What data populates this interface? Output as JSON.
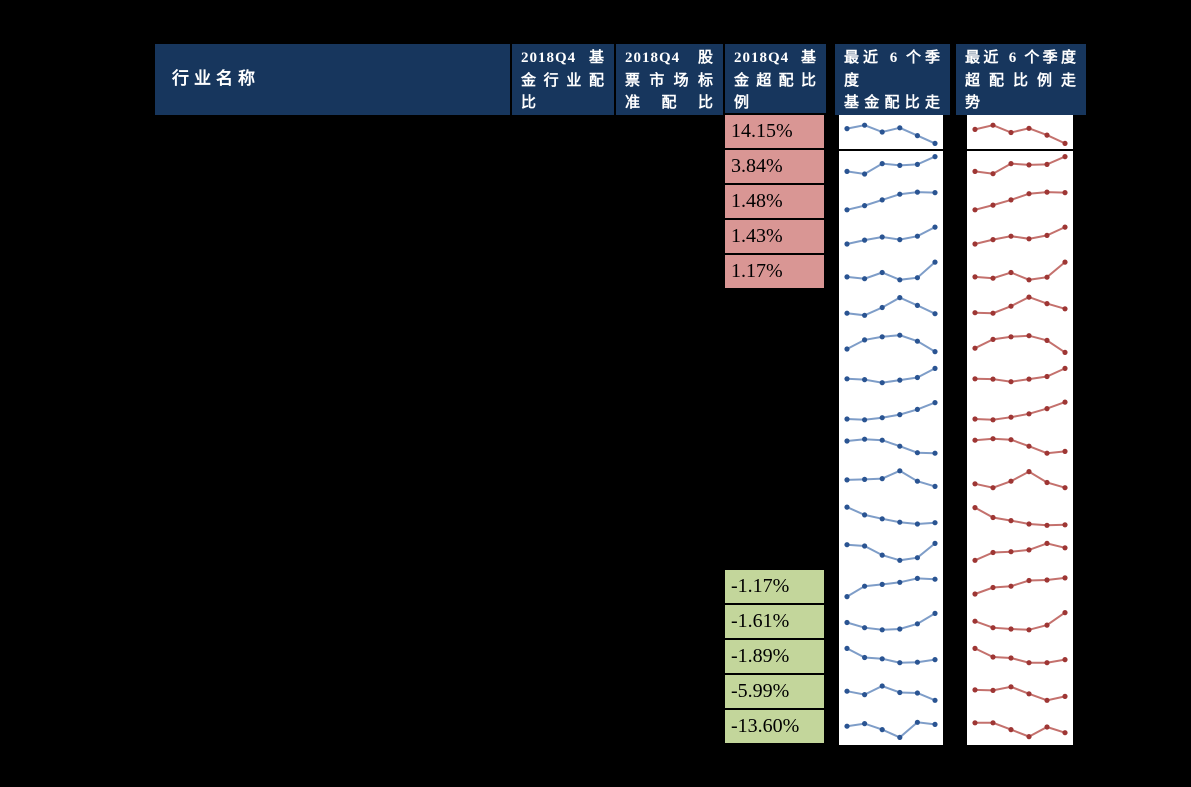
{
  "header": {
    "columns": [
      "行业名称",
      "2018Q4 基\n金行业配\n比",
      "2018Q4 股\n票市场标\n准配比",
      "2018Q4 基\n金超配比\n例",
      "最近 6 个季度\n基金配比走\n势",
      "最近 6 个季度\n超配比例走\n势"
    ]
  },
  "colors": {
    "page_bg": "#000000",
    "header_bg": "#17365D",
    "header_text": "#FFFFFF",
    "positive_cell_bg": "#D99694",
    "negative_cell_bg": "#C3D69B",
    "spark_bg": "#FFFFFF",
    "fund_line": "#7E9DC8",
    "fund_marker": "#2A5492",
    "overweight_line": "#C4716D",
    "overweight_marker": "#9E3634"
  },
  "chart_data": {
    "type": "table",
    "columns": [
      "行业名称",
      "2018Q4 基金行业配比",
      "2018Q4 股票市场标准配比",
      "2018Q4 基金超配比例",
      "最近6个季度基金配比走势",
      "最近6个季度超配比例走势"
    ],
    "sparkline_points_per_row": 6,
    "rows": [
      {
        "overweight_ratio": "14.15%",
        "fund_trend": [
          0.65,
          0.78,
          0.52,
          0.68,
          0.38,
          0.08
        ],
        "overweight_trend": [
          0.62,
          0.78,
          0.5,
          0.66,
          0.4,
          0.08
        ]
      },
      {
        "overweight_ratio": "3.84%",
        "fund_trend": [
          0.35,
          0.25,
          0.65,
          0.58,
          0.62,
          0.92
        ],
        "overweight_trend": [
          0.35,
          0.26,
          0.65,
          0.6,
          0.62,
          0.92
        ]
      },
      {
        "overweight_ratio": "1.48%",
        "fund_trend": [
          0.22,
          0.38,
          0.6,
          0.82,
          0.9,
          0.88
        ],
        "overweight_trend": [
          0.22,
          0.4,
          0.6,
          0.84,
          0.9,
          0.88
        ]
      },
      {
        "overweight_ratio": "1.43%",
        "fund_trend": [
          0.25,
          0.4,
          0.52,
          0.42,
          0.55,
          0.9
        ],
        "overweight_trend": [
          0.25,
          0.42,
          0.55,
          0.45,
          0.58,
          0.9
        ]
      },
      {
        "overweight_ratio": "1.17%",
        "fund_trend": [
          0.33,
          0.26,
          0.5,
          0.22,
          0.3,
          0.9
        ],
        "overweight_trend": [
          0.33,
          0.28,
          0.5,
          0.22,
          0.32,
          0.9
        ]
      },
      {
        "fund_trend": [
          0.28,
          0.2,
          0.5,
          0.88,
          0.58,
          0.26
        ],
        "overweight_trend": [
          0.3,
          0.28,
          0.55,
          0.9,
          0.65,
          0.45
        ]
      },
      {
        "fund_trend": [
          0.25,
          0.6,
          0.72,
          0.78,
          0.55,
          0.15
        ],
        "overweight_trend": [
          0.28,
          0.62,
          0.72,
          0.76,
          0.58,
          0.12
        ]
      },
      {
        "fund_trend": [
          0.45,
          0.42,
          0.3,
          0.4,
          0.5,
          0.85
        ],
        "overweight_trend": [
          0.45,
          0.44,
          0.34,
          0.44,
          0.54,
          0.85
        ]
      },
      {
        "fund_trend": [
          0.25,
          0.22,
          0.3,
          0.42,
          0.62,
          0.88
        ],
        "overweight_trend": [
          0.25,
          0.22,
          0.32,
          0.45,
          0.65,
          0.9
        ]
      },
      {
        "fund_trend": [
          0.75,
          0.82,
          0.78,
          0.55,
          0.3,
          0.28
        ],
        "overweight_trend": [
          0.78,
          0.84,
          0.8,
          0.55,
          0.28,
          0.35
        ]
      },
      {
        "fund_trend": [
          0.6,
          0.62,
          0.65,
          0.95,
          0.55,
          0.35
        ],
        "overweight_trend": [
          0.45,
          0.3,
          0.55,
          0.92,
          0.5,
          0.3
        ]
      },
      {
        "fund_trend": [
          0.9,
          0.6,
          0.45,
          0.32,
          0.25,
          0.3
        ],
        "overweight_trend": [
          0.88,
          0.5,
          0.38,
          0.25,
          0.2,
          0.22
        ]
      },
      {
        "fund_trend": [
          0.8,
          0.75,
          0.4,
          0.2,
          0.3,
          0.85
        ],
        "overweight_trend": [
          0.2,
          0.5,
          0.53,
          0.6,
          0.85,
          0.68
        ]
      },
      {
        "overweight_ratio": "-1.17%",
        "fund_trend": [
          0.15,
          0.55,
          0.62,
          0.7,
          0.85,
          0.82
        ],
        "overweight_trend": [
          0.25,
          0.5,
          0.55,
          0.77,
          0.79,
          0.87
        ]
      },
      {
        "overweight_ratio": "-1.61%",
        "fund_trend": [
          0.5,
          0.3,
          0.22,
          0.25,
          0.45,
          0.85
        ],
        "overweight_trend": [
          0.55,
          0.3,
          0.25,
          0.22,
          0.4,
          0.88
        ]
      },
      {
        "overweight_ratio": "-1.89%",
        "fund_trend": [
          0.85,
          0.5,
          0.45,
          0.3,
          0.32,
          0.42
        ],
        "overweight_trend": [
          0.85,
          0.52,
          0.48,
          0.3,
          0.3,
          0.42
        ]
      },
      {
        "overweight_ratio": "-5.99%",
        "fund_trend": [
          0.55,
          0.42,
          0.75,
          0.5,
          0.48,
          0.2
        ],
        "overweight_trend": [
          0.6,
          0.58,
          0.72,
          0.45,
          0.2,
          0.35
        ]
      },
      {
        "overweight_ratio": "-13.60%",
        "fund_trend": [
          0.55,
          0.65,
          0.42,
          0.12,
          0.7,
          0.62
        ],
        "overweight_trend": [
          0.68,
          0.68,
          0.42,
          0.15,
          0.52,
          0.3
        ]
      }
    ]
  }
}
